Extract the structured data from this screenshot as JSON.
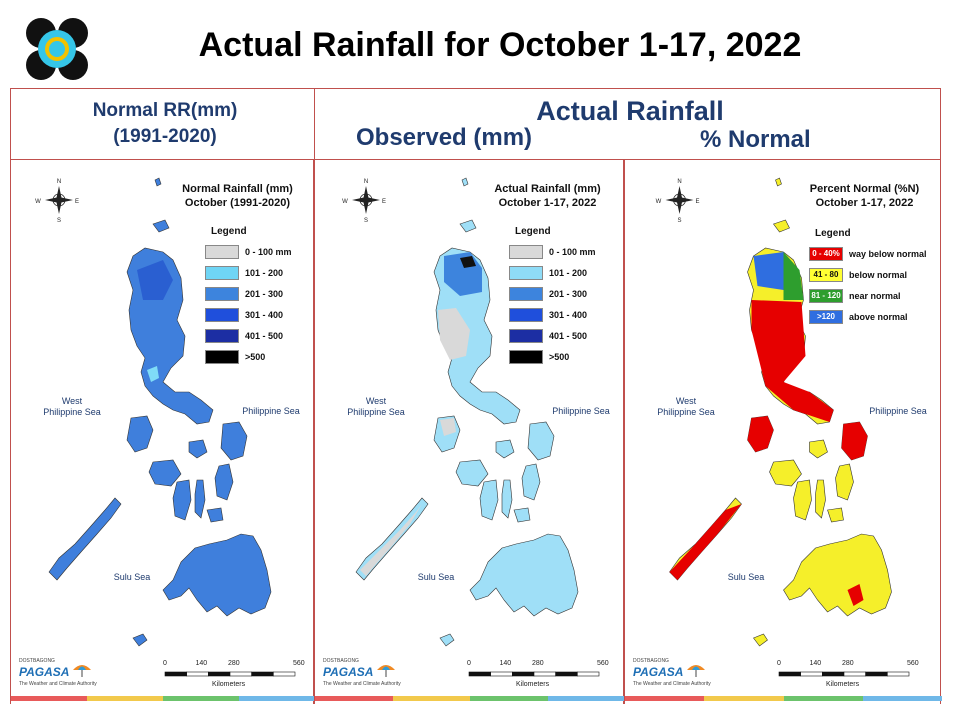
{
  "page": {
    "title": "Actual Rainfall for October 1-17, 2022"
  },
  "header": {
    "normal_line1": "Normal RR(mm)",
    "normal_line2": "(1991-2020)",
    "actual_title": "Actual Rainfall",
    "observed": "Observed (mm)",
    "percent": "% Normal"
  },
  "maps": [
    {
      "title_line1": "Normal Rainfall (mm)",
      "title_line2": "October (1991-2020)",
      "legend_title": "Legend",
      "legend": [
        {
          "label": "0 - 100 mm",
          "color": "#d9d9d9"
        },
        {
          "label": "101 - 200",
          "color": "#6fd5f5"
        },
        {
          "label": "201 - 300",
          "color": "#3d84dd"
        },
        {
          "label": "301 - 400",
          "color": "#1f4fdc"
        },
        {
          "label": "401 - 500",
          "color": "#1c2ea3"
        },
        {
          "label": ">500",
          "color": "#000000"
        }
      ],
      "land_color": "#3f7fdc",
      "sea_west": "West\nPhilippine Sea",
      "sea_east": "Philippine Sea",
      "sea_south": "Sulu Sea",
      "scale": [
        "0",
        "140",
        "280",
        "560"
      ],
      "scale_unit": "Kilometers"
    },
    {
      "title_line1": "Actual Rainfall (mm)",
      "title_line2": "October 1-17, 2022",
      "legend_title": "Legend",
      "legend": [
        {
          "label": "0 - 100 mm",
          "color": "#d9d9d9"
        },
        {
          "label": "101 - 200",
          "color": "#8fdcf7"
        },
        {
          "label": "201 - 300",
          "color": "#3d84dd"
        },
        {
          "label": "301 - 400",
          "color": "#1f4fdc"
        },
        {
          "label": "401 - 500",
          "color": "#1c2ea3"
        },
        {
          "label": ">500",
          "color": "#000000"
        }
      ],
      "land_color": "#9fdff7",
      "sea_west": "West\nPhilippine Sea",
      "sea_east": "Philippine Sea",
      "sea_south": "Sulu Sea",
      "scale": [
        "0",
        "140",
        "280",
        "560"
      ],
      "scale_unit": "Kilometers"
    },
    {
      "title_line1": "Percent Normal (%N)",
      "title_line2": "October 1-17, 2022",
      "legend_title": "Legend",
      "legend": [
        {
          "swatch": "0 - 40%",
          "label": "way below normal",
          "color": "#e60000"
        },
        {
          "swatch": "41 - 80",
          "label": "below normal",
          "color": "#ffff33"
        },
        {
          "swatch": "81 - 120",
          "label": "near normal",
          "color": "#2e9e2e"
        },
        {
          "swatch": ">120",
          "label": "above normal",
          "color": "#2f6ee0"
        }
      ],
      "land_color": "#f5ef2a",
      "sea_west": "West\nPhilippine Sea",
      "sea_east": "Philippine Sea",
      "sea_south": "Sulu Sea",
      "scale": [
        "0",
        "140",
        "280",
        "560"
      ],
      "scale_unit": "Kilometers"
    }
  ],
  "branding": {
    "dost": "DOST",
    "bagong": "BAGONG",
    "pagasa": "PAGASA",
    "tagline": "The Weather and Climate Authority"
  },
  "compass": {
    "n": "N",
    "s": "S",
    "e": "E",
    "w": "W"
  }
}
